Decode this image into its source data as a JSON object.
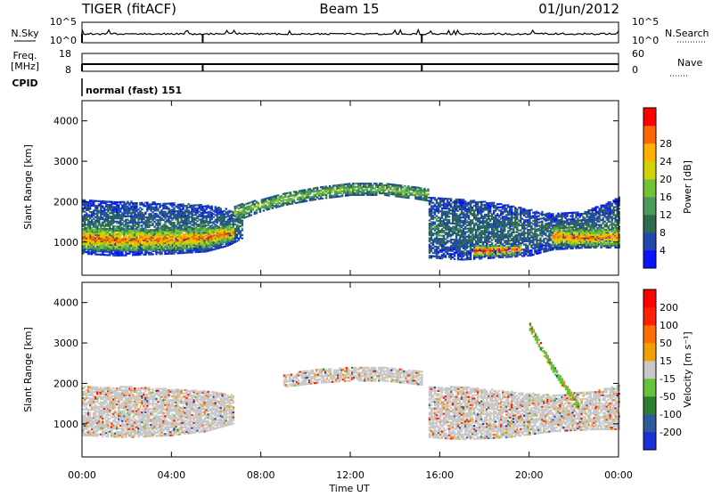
{
  "header": {
    "radar": "TIGER (fitACF)",
    "beam": "Beam 15",
    "date": "01/Jun/2012"
  },
  "top_panels": {
    "nsky_label": "N.Sky",
    "nsearch_label": "N.Search",
    "nsky_ticks": [
      "10^5",
      "10^0"
    ],
    "nsearch_ticks": [
      "10^5",
      "10^0"
    ],
    "freq_label_1": "Freq.",
    "freq_label_2": "[MHz]",
    "freq_ticks": [
      "18",
      "8"
    ],
    "nave_label": "Nave",
    "nave_ticks": [
      "60",
      "0"
    ],
    "cpid_label": "CPID",
    "cpid_text": "normal (fast) 151"
  },
  "chart_data": [
    {
      "type": "heatmap",
      "name": "power",
      "ylabel": "Slant Range [km]",
      "ylim": [
        180,
        4500
      ],
      "yticks": [
        1000,
        2000,
        3000,
        4000
      ],
      "xlim": [
        0,
        24
      ],
      "colorbar_label": "Power [dB]",
      "colorbar_ticks": [
        "4",
        "8",
        "12",
        "16",
        "20",
        "24",
        "28"
      ],
      "colorbar_colors": [
        "#0a14ff",
        "#2148b0",
        "#2e6a4e",
        "#4c9a5c",
        "#72c23a",
        "#cfd400",
        "#ffb000",
        "#ff6600",
        "#ff0000"
      ],
      "bands": [
        {
          "t": [
            0,
            1.5,
            4,
            5.5,
            6.5,
            7.2
          ],
          "lo": [
            700,
            650,
            700,
            750,
            900,
            1100
          ],
          "hi": [
            2050,
            2000,
            1950,
            1900,
            1800,
            1700
          ],
          "level": 2
        },
        {
          "t": [
            0,
            2,
            4,
            5.5,
            6.8
          ],
          "lo": [
            800,
            780,
            800,
            850,
            1050
          ],
          "hi": [
            1350,
            1300,
            1300,
            1350,
            1400
          ],
          "level": 7
        },
        {
          "t": [
            6.8,
            8,
            9,
            10.5,
            12,
            13.5,
            15,
            15.5
          ],
          "lo": [
            1500,
            1750,
            1900,
            2050,
            2150,
            2150,
            2050,
            2000
          ],
          "hi": [
            1900,
            2050,
            2200,
            2350,
            2450,
            2450,
            2350,
            2300
          ],
          "level": 4
        },
        {
          "t": [
            15.5,
            17,
            18.5,
            20,
            21,
            22.5,
            24
          ],
          "lo": [
            600,
            550,
            600,
            650,
            800,
            850,
            850
          ],
          "hi": [
            2100,
            2050,
            1950,
            1800,
            1700,
            1750,
            2100
          ],
          "level": 2
        },
        {
          "t": [
            17.5,
            18.5,
            19.6
          ],
          "lo": [
            650,
            650,
            700
          ],
          "hi": [
            900,
            900,
            900
          ],
          "level": 8
        },
        {
          "t": [
            21,
            22,
            23,
            24
          ],
          "lo": [
            900,
            880,
            880,
            900
          ],
          "hi": [
            1350,
            1300,
            1300,
            1350
          ],
          "level": 7
        }
      ]
    },
    {
      "type": "heatmap",
      "name": "velocity",
      "ylabel": "Slant Range [km]",
      "ylim": [
        180,
        4500
      ],
      "yticks": [
        1000,
        2000,
        3000,
        4000
      ],
      "xlim": [
        0,
        24
      ],
      "xticks": [
        "00:00",
        "04:00",
        "08:00",
        "12:00",
        "16:00",
        "20:00",
        "00:00"
      ],
      "xlabel": "Time UT",
      "colorbar_label": "Velocity [m s⁻¹]",
      "colorbar_ticks": [
        "200",
        "100",
        "50",
        "15",
        "-15",
        "-50",
        "-100",
        "-200"
      ],
      "colorbar_colors": [
        "#1a2fd6",
        "#2c5a9c",
        "#2e7d32",
        "#66c23a",
        "#c8c8c8",
        "#f0a000",
        "#ff7000",
        "#ff2000",
        "#ff0000"
      ],
      "bands": [
        {
          "t": [
            0,
            2,
            4,
            5.5,
            6.8
          ],
          "lo": [
            700,
            650,
            700,
            800,
            1000
          ],
          "hi": [
            1900,
            1900,
            1850,
            1800,
            1700
          ],
          "level": 4
        },
        {
          "t": [
            9,
            10.5,
            12,
            13.5,
            15.2
          ],
          "lo": [
            1900,
            2000,
            2050,
            2050,
            1950
          ],
          "hi": [
            2200,
            2350,
            2400,
            2400,
            2300
          ],
          "level": 4
        },
        {
          "t": [
            15.5,
            17,
            19,
            21,
            23,
            24
          ],
          "lo": [
            650,
            600,
            650,
            800,
            850,
            850
          ],
          "hi": [
            1900,
            1900,
            1800,
            1700,
            1800,
            1950
          ],
          "level": 4
        },
        {
          "t": [
            20,
            21,
            22.2
          ],
          "lo": [
            3300,
            2300,
            1300
          ],
          "hi": [
            3500,
            2500,
            1500
          ],
          "level": 3
        }
      ]
    }
  ]
}
